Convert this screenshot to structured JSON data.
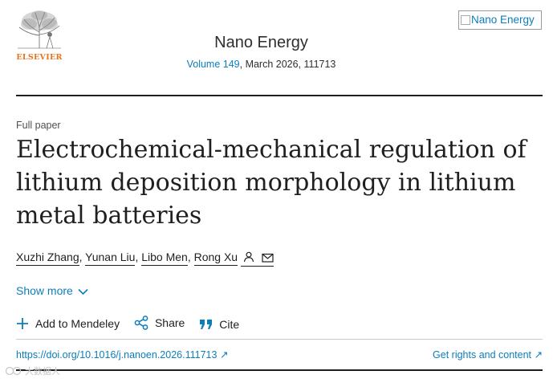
{
  "publisher": {
    "logo_text": "ELSEVIER",
    "brand_color": "#e9711c"
  },
  "journal": {
    "name": "Nano Energy",
    "volume_link": "Volume 149",
    "issue_info": ", March 2026, 111713",
    "cover_alt": "Nano Energy"
  },
  "article": {
    "type": "Full paper",
    "title": "Electrochemical-mechanical regulation of lithium deposition morphology in lithium metal batteries",
    "authors": [
      "Xuzhi Zhang",
      "Yunan Liu",
      "Libo Men",
      "Rong Xu"
    ],
    "separator": ",",
    "show_more": "Show more"
  },
  "actions": {
    "mendeley": "Add to Mendeley",
    "share": "Share",
    "cite": "Cite"
  },
  "links": {
    "doi": "https://doi.org/10.1016/j.nanoen.2026.111713",
    "doi_arrow": "↗",
    "rights": "Get rights and content",
    "rights_arrow": "↗"
  },
  "watermark": {
    "text": "大数据人"
  },
  "colors": {
    "link": "#0c7dbb",
    "text": "#1f1f1f"
  },
  "icons": [
    "elsevier-tree-logo",
    "broken-image-icon",
    "person-icon",
    "envelope-icon",
    "chevron-down-icon",
    "plus-icon",
    "share-icon",
    "quote-icon",
    "external-link-arrow-icon"
  ]
}
